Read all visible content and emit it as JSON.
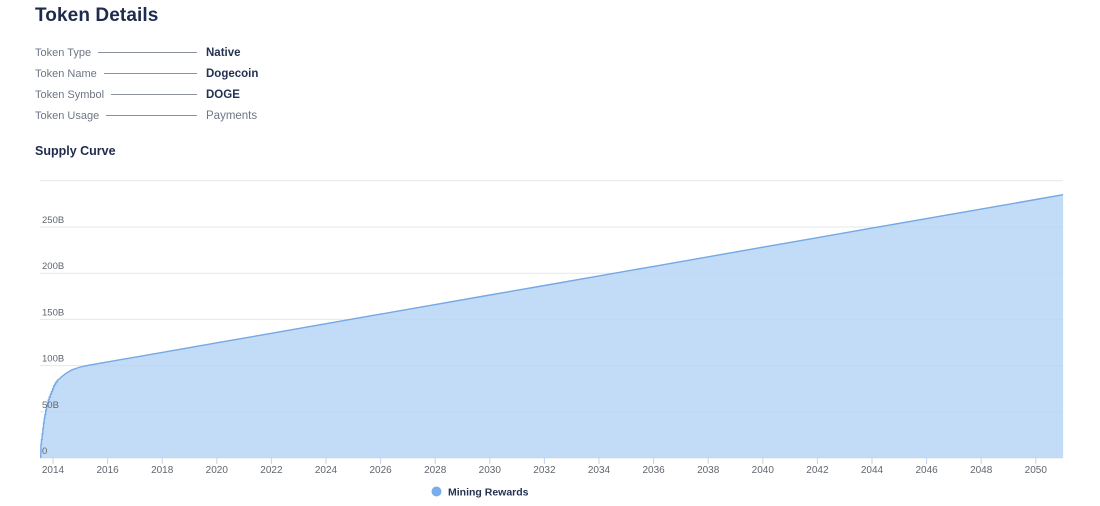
{
  "page": {
    "title": "Token Details"
  },
  "details": {
    "rows": [
      {
        "label": "Token Type",
        "value": "Native",
        "emphasis": true
      },
      {
        "label": "Token Name",
        "value": "Dogecoin",
        "emphasis": true
      },
      {
        "label": "Token Symbol",
        "value": "DOGE",
        "emphasis": true
      },
      {
        "label": "Token Usage",
        "value": "Payments",
        "emphasis": false
      }
    ]
  },
  "supply_curve": {
    "heading": "Supply Curve"
  },
  "chart_data": {
    "type": "area",
    "title": "Supply Curve",
    "xlabel": "",
    "ylabel": "",
    "unit": "billions of tokens",
    "x_range": [
      2013.55,
      2051
    ],
    "y_range": [
      0,
      300
    ],
    "grid": true,
    "legend_position": "bottom",
    "legend": [
      {
        "name": "Mining Rewards",
        "color": "#79aded"
      }
    ],
    "x_ticks": [
      2014,
      2016,
      2018,
      2020,
      2022,
      2024,
      2026,
      2028,
      2030,
      2032,
      2034,
      2036,
      2038,
      2040,
      2042,
      2044,
      2046,
      2048,
      2050
    ],
    "y_ticks": [
      {
        "value": 0,
        "label": "0"
      },
      {
        "value": 50,
        "label": "50B"
      },
      {
        "value": 100,
        "label": "100B"
      },
      {
        "value": 150,
        "label": "150B"
      },
      {
        "value": 200,
        "label": "200B"
      },
      {
        "value": 250,
        "label": "250B"
      },
      {
        "value": 300,
        "label": ""
      }
    ],
    "series": [
      {
        "name": "Mining Rewards",
        "points": [
          [
            2013.55,
            0
          ],
          [
            2013.56,
            15
          ],
          [
            2013.575,
            15
          ],
          [
            2013.58,
            20
          ],
          [
            2013.6,
            20
          ],
          [
            2013.605,
            26
          ],
          [
            2013.625,
            26
          ],
          [
            2013.63,
            32
          ],
          [
            2013.65,
            32
          ],
          [
            2013.655,
            38
          ],
          [
            2013.675,
            38
          ],
          [
            2013.68,
            43
          ],
          [
            2013.7,
            43
          ],
          [
            2013.705,
            47
          ],
          [
            2013.73,
            47
          ],
          [
            2013.735,
            52
          ],
          [
            2013.76,
            52
          ],
          [
            2013.765,
            56
          ],
          [
            2013.79,
            56
          ],
          [
            2013.795,
            60
          ],
          [
            2013.825,
            60
          ],
          [
            2013.83,
            63
          ],
          [
            2013.86,
            63
          ],
          [
            2013.865,
            66
          ],
          [
            2013.9,
            66
          ],
          [
            2013.905,
            69
          ],
          [
            2013.94,
            69
          ],
          [
            2013.945,
            72
          ],
          [
            2013.98,
            72
          ],
          [
            2013.985,
            75
          ],
          [
            2014.02,
            75
          ],
          [
            2014.025,
            78
          ],
          [
            2014.06,
            78
          ],
          [
            2014.065,
            80
          ],
          [
            2014.1,
            80
          ],
          [
            2014.105,
            82
          ],
          [
            2014.15,
            82
          ],
          [
            2014.155,
            84
          ],
          [
            2014.21,
            85
          ],
          [
            2014.28,
            87
          ],
          [
            2014.36,
            89
          ],
          [
            2014.45,
            91
          ],
          [
            2014.55,
            93
          ],
          [
            2014.7,
            95.5
          ],
          [
            2014.85,
            97
          ],
          [
            2015.0,
            98.5
          ],
          [
            2015.25,
            100
          ],
          [
            2015.6,
            102
          ],
          [
            2016,
            104
          ],
          [
            2018,
            114.3
          ],
          [
            2020,
            124.7
          ],
          [
            2022,
            135.0
          ],
          [
            2024,
            145.4
          ],
          [
            2026,
            155.7
          ],
          [
            2028,
            166.0
          ],
          [
            2030,
            176.4
          ],
          [
            2032,
            186.7
          ],
          [
            2034,
            197.1
          ],
          [
            2036,
            207.4
          ],
          [
            2038,
            217.7
          ],
          [
            2040,
            228.1
          ],
          [
            2042,
            238.4
          ],
          [
            2044,
            248.8
          ],
          [
            2046,
            259.1
          ],
          [
            2048,
            269.4
          ],
          [
            2050,
            279.8
          ],
          [
            2051,
            285
          ]
        ]
      }
    ],
    "colors": {
      "area_fill": "#b7d5f4",
      "line": "#74a9e6",
      "grid": "#e4e7ea",
      "axis_tick": "#c4d2e8",
      "tick_text": "#60666f",
      "legend_text": "#243252"
    }
  }
}
